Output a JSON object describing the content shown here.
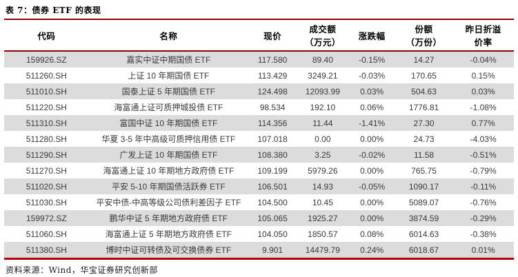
{
  "title": "表 7：债券 ETF 的表现",
  "colors": {
    "rule_dark": "#8B0000",
    "rule_bottom": "#B40000",
    "row_stripe": "#DCDCDC"
  },
  "table": {
    "headers": [
      {
        "line1": "代码",
        "line2": ""
      },
      {
        "line1": "名称",
        "line2": ""
      },
      {
        "line1": "现价",
        "line2": ""
      },
      {
        "line1": "成交额",
        "line2": "（万元）"
      },
      {
        "line1": "涨跌幅",
        "line2": ""
      },
      {
        "line1": "份额",
        "line2": "（万份）"
      },
      {
        "line1": "昨日折溢",
        "line2": "价率"
      }
    ],
    "col_widths": [
      "16.6%",
      "31.3%",
      "9.5%",
      "10.2%",
      "9.1%",
      "11.3%",
      "12.0%"
    ],
    "rows": [
      [
        "159926.SZ",
        "嘉实中证中期国债 ETF",
        "117.580",
        "89.40",
        "-0.15%",
        "14.27",
        "-0.04%"
      ],
      [
        "511260.SH",
        "上证 10 年期国债 ETF",
        "113.429",
        "3249.21",
        "-0.03%",
        "170.65",
        "0.15%"
      ],
      [
        "511010.SH",
        "国泰上证 5 年期国债 ETF",
        "124.498",
        "12093.99",
        "0.03%",
        "504.63",
        "0.03%"
      ],
      [
        "511220.SH",
        "海富通上证可质押城投债 ETF",
        "98.534",
        "192.10",
        "0.06%",
        "1776.81",
        "-1.08%"
      ],
      [
        "511310.SH",
        "富国中证 10 年期国债 ETF",
        "114.356",
        "11.44",
        "-1.41%",
        "27.30",
        "0.77%"
      ],
      [
        "511280.SH",
        "华夏 3-5 年中高级可质押信用债 ETF",
        "107.018",
        "0.00",
        "0.00%",
        "24.73",
        "-4.03%"
      ],
      [
        "511290.SH",
        "广发上证 10 年期国债 ETF",
        "108.380",
        "3.25",
        "-0.02%",
        "11.58",
        "-0.51%"
      ],
      [
        "511270.SH",
        "海富通上证 10 年期地方政府债 ETF",
        "109.199",
        "5979.26",
        "0.00%",
        "765.75",
        "-0.79%"
      ],
      [
        "511020.SH",
        "平安 5-10 年期国债活跃券 ETF",
        "106.501",
        "14.93",
        "-0.05%",
        "1090.17",
        "-0.11%"
      ],
      [
        "511030.SH",
        "平安中债-中高等级公司债利差因子 ETF",
        "104.500",
        "10.45",
        "0.00%",
        "5089.07",
        "-0.76%"
      ],
      [
        "159972.SZ",
        "鹏华中证 5 年期地方政府债 ETF",
        "105.065",
        "1925.27",
        "0.00%",
        "3874.59",
        "-0.29%"
      ],
      [
        "511060.SH",
        "海富通上证 5 年期地方政府债 ETF",
        "104.050",
        "1850.57",
        "0.08%",
        "6014.63",
        "-0.38%"
      ],
      [
        "511380.SH",
        "博时中证可转债及可交换债券 ETF",
        "9.901",
        "14479.79",
        "0.24%",
        "6018.67",
        "0.01%"
      ]
    ]
  },
  "footer": {
    "source_label": "资料来源：Wind，华宝证券研究创新部"
  }
}
